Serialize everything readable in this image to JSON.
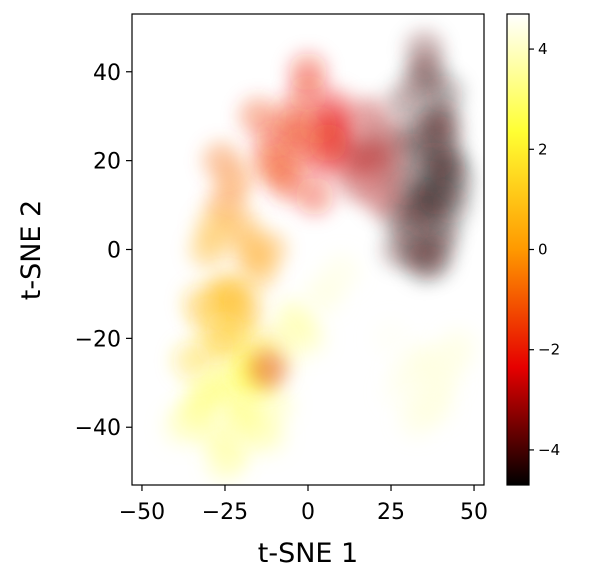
{
  "chart_data": {
    "type": "scatter",
    "title": "",
    "xlabel": "t-SNE 1",
    "ylabel": "t-SNE 2",
    "xlim": [
      -53,
      53
    ],
    "ylim": [
      -53,
      53
    ],
    "xticks": [
      -50,
      -25,
      0,
      25,
      50
    ],
    "yticks": [
      -40,
      -20,
      0,
      20,
      40
    ],
    "xtick_labels": [
      "−50",
      "−25",
      "0",
      "25",
      "50"
    ],
    "ytick_labels": [
      "−40",
      "−20",
      "0",
      "20",
      "40"
    ],
    "grid": false,
    "legend": "none",
    "colormap": "hot",
    "colorbar": {
      "range": [
        -4.7,
        4.7
      ],
      "ticks": [
        -4,
        -2,
        0,
        2,
        4
      ],
      "tick_labels": [
        "−4",
        "−2",
        "0",
        "2",
        "4"
      ],
      "stops": [
        "#000000",
        "#e60000",
        "#ff9900",
        "#ffff33",
        "#ffffff"
      ]
    },
    "series": [
      {
        "x": [
          38,
          42,
          33,
          40,
          28,
          35,
          37,
          30,
          44,
          36,
          41,
          34,
          32,
          39,
          27,
          36,
          40,
          31,
          43,
          38,
          35,
          29,
          37,
          42,
          33,
          30,
          35,
          39,
          41,
          38
        ],
        "y": [
          30,
          20,
          10,
          5,
          0,
          -3,
          12,
          25,
          15,
          40,
          35,
          38,
          22,
          2,
          8,
          16,
          24,
          5,
          10,
          -2,
          45,
          33,
          27,
          18,
          0,
          14,
          8,
          12,
          28,
          20
        ],
        "c": [
          -4.2,
          -4.4,
          -4.0,
          -4.5,
          -4.1,
          -4.3,
          -4.6,
          -4.0,
          -4.5,
          -4.2,
          -4.3,
          -4.1,
          -4.4,
          -4.2,
          -4.0,
          -4.5,
          -4.1,
          -4.3,
          -4.4,
          -4.2,
          -3.9,
          -4.0,
          -4.3,
          -4.5,
          -4.1,
          -4.4,
          -4.2,
          -4.3,
          -4.1,
          -4.4
        ]
      },
      {
        "x": [
          15,
          20,
          10,
          18,
          25,
          22,
          12,
          17,
          23,
          8
        ],
        "y": [
          15,
          20,
          25,
          30,
          18,
          12,
          20,
          22,
          25,
          28
        ],
        "c": [
          -3.0,
          -2.8,
          -2.5,
          -2.9,
          -3.3,
          -3.0,
          -2.7,
          -3.1,
          -3.2,
          -2.4
        ]
      },
      {
        "x": [
          -10,
          -5,
          0,
          5,
          -8,
          -2,
          3,
          -15,
          8,
          0,
          -12,
          -6,
          2,
          6,
          -3
        ],
        "y": [
          25,
          30,
          35,
          20,
          18,
          22,
          28,
          30,
          32,
          40,
          20,
          15,
          12,
          24,
          26
        ],
        "c": [
          -1.8,
          -1.6,
          -2.0,
          -2.2,
          -1.5,
          -1.7,
          -1.9,
          -1.4,
          -2.1,
          -1.8,
          -1.2,
          -1.5,
          -1.9,
          -2.0,
          -1.6
        ]
      },
      {
        "x": [
          -25,
          -20,
          -30,
          -15,
          -22,
          -18,
          -28,
          -25,
          -32,
          -12,
          -20,
          -26
        ],
        "y": [
          10,
          5,
          0,
          -5,
          15,
          0,
          5,
          -10,
          -12,
          0,
          -15,
          20
        ],
        "c": [
          -0.5,
          0.0,
          0.4,
          0.2,
          -0.6,
          0.1,
          0.3,
          0.6,
          0.8,
          0.0,
          0.5,
          -0.8
        ]
      },
      {
        "x": [
          -30,
          -22,
          -18,
          -28,
          -25,
          -15,
          -20,
          -12,
          -35,
          -24
        ],
        "y": [
          -15,
          -20,
          -25,
          -22,
          -18,
          -28,
          -12,
          -22,
          -25,
          -10
        ],
        "c": [
          1.0,
          1.4,
          1.8,
          1.2,
          1.0,
          2.0,
          0.8,
          1.6,
          1.5,
          0.6
        ]
      },
      {
        "x": [
          -25,
          -20,
          -15,
          -30,
          -35,
          -22,
          -10,
          -18,
          -28,
          -25,
          -15,
          -12,
          -38,
          -32,
          -20
        ],
        "y": [
          -30,
          -35,
          -40,
          -32,
          -38,
          -45,
          -35,
          -28,
          -42,
          -48,
          -30,
          -42,
          -40,
          -35,
          -38
        ],
        "c": [
          2.5,
          2.8,
          3.2,
          2.6,
          3.0,
          3.4,
          3.5,
          2.4,
          3.1,
          3.3,
          2.6,
          3.6,
          3.8,
          2.9,
          3.0
        ]
      },
      {
        "x": [
          35,
          40,
          30,
          45,
          28,
          38,
          25,
          42,
          33,
          36
        ],
        "y": [
          -25,
          -30,
          -28,
          -22,
          -32,
          -35,
          -20,
          -26,
          -38,
          -30
        ],
        "c": [
          4.0,
          4.2,
          4.3,
          4.1,
          4.4,
          4.0,
          4.5,
          4.2,
          4.1,
          4.3
        ]
      },
      {
        "x": [
          -5,
          0,
          -8,
          -12,
          5,
          10,
          -3
        ],
        "y": [
          -15,
          -20,
          -25,
          -27,
          -10,
          -5,
          -18
        ],
        "c": [
          3.5,
          3.8,
          3.6,
          -2.5,
          4.0,
          4.2,
          3.4
        ]
      }
    ]
  }
}
